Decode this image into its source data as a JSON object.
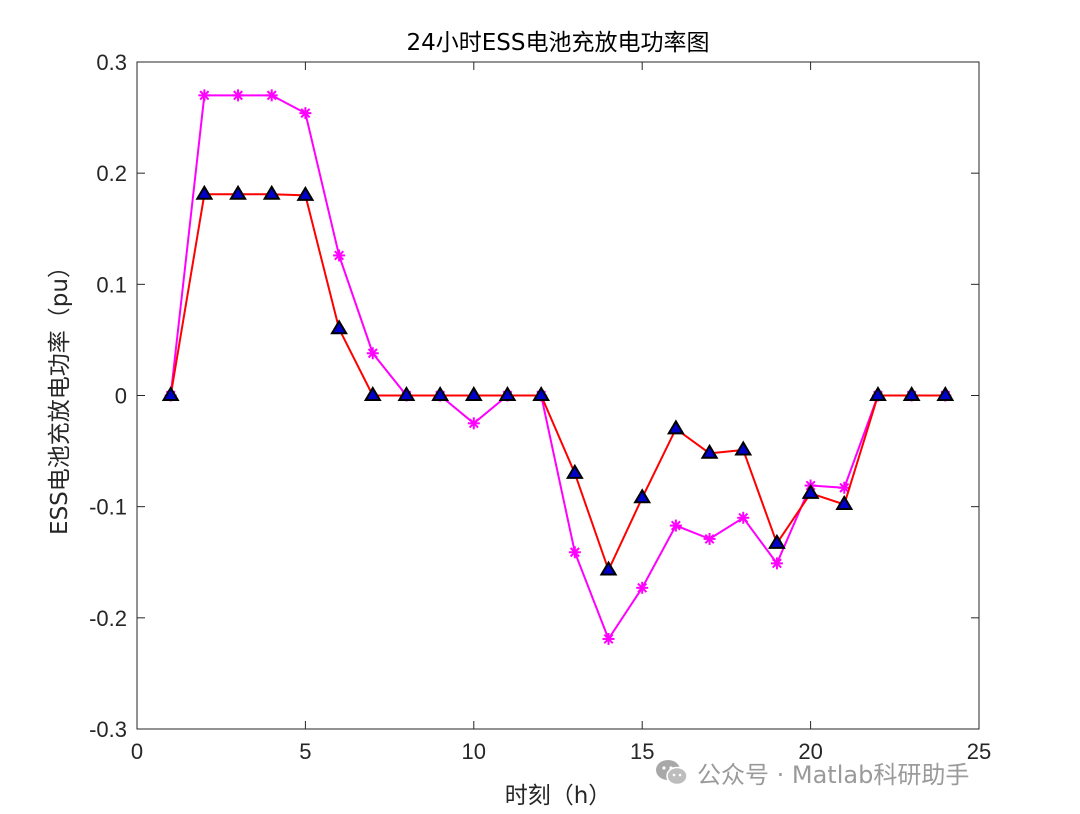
{
  "chart_data": {
    "type": "line",
    "title": "24小时ESS电池充放电功率图",
    "xlabel": "时刻（h）",
    "ylabel": "ESS电池充放电功率（pu）",
    "xlim": [
      0,
      25
    ],
    "ylim": [
      -0.3,
      0.3
    ],
    "xticks": [
      0,
      5,
      10,
      15,
      20,
      25
    ],
    "yticks": [
      -0.3,
      -0.2,
      -0.1,
      0,
      0.1,
      0.2,
      0.3
    ],
    "ytick_labels": [
      "-0.3",
      "-0.2",
      "-0.1",
      "0",
      "0.1",
      "0.2",
      "0.3"
    ],
    "grid": false,
    "legend": "none",
    "x": [
      1,
      2,
      3,
      4,
      5,
      6,
      7,
      8,
      9,
      10,
      11,
      12,
      13,
      14,
      15,
      16,
      17,
      18,
      19,
      20,
      21,
      22,
      23,
      24
    ],
    "series": [
      {
        "color": "#ff00ff",
        "marker": "asterisk",
        "values": [
          0,
          0.27,
          0.27,
          0.27,
          0.254,
          0.126,
          0.038,
          0,
          0,
          -0.025,
          0,
          0,
          -0.141,
          -0.219,
          -0.173,
          -0.117,
          -0.129,
          -0.11,
          -0.151,
          -0.081,
          -0.083,
          0,
          0,
          0
        ]
      },
      {
        "color": "#ff0000",
        "marker": "triangle",
        "marker_fill": "#0000cc",
        "values": [
          0,
          0.181,
          0.181,
          0.181,
          0.18,
          0.06,
          0,
          0,
          0,
          0,
          0,
          0,
          -0.07,
          -0.157,
          -0.092,
          -0.03,
          -0.052,
          -0.049,
          -0.133,
          -0.088,
          -0.098,
          0,
          0,
          0
        ]
      }
    ]
  },
  "watermark": {
    "text": "公众号 · Matlab科研助手",
    "icon": "wechat-icon"
  }
}
